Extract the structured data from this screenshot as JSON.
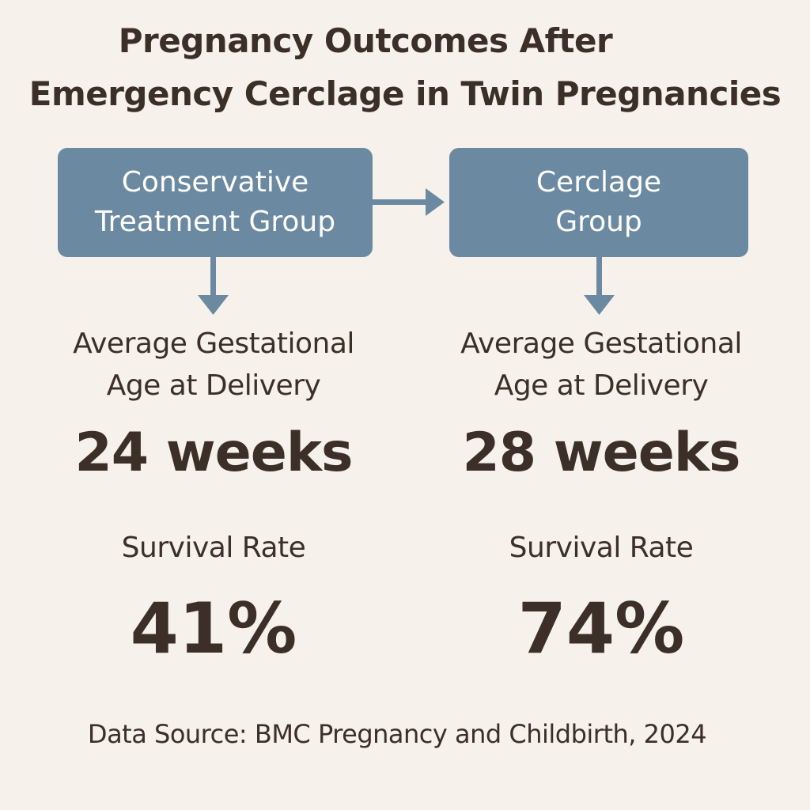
{
  "title": {
    "line1": "Pregnancy Outcomes After",
    "line2": "Emergency Cerclage in Twin Pregnancies"
  },
  "groups": [
    {
      "label_line1": "Conservative",
      "label_line2": "Treatment Group",
      "age_label_line1": "Average Gestational",
      "age_label_line2": "Age at Delivery",
      "age_value": "24 weeks",
      "survival_label": "Survival Rate",
      "survival_value": "41%"
    },
    {
      "label_line1": "Cerclage",
      "label_line2": "Group",
      "age_label_line1": "Average Gestational",
      "age_label_line2": "Age at Delivery",
      "age_value": "28 weeks",
      "survival_label": "Survival Rate",
      "survival_value": "74%"
    }
  ],
  "source": "Data Source: BMC Pregnancy and Childbirth, 2024",
  "colors": {
    "background": "#f6f1eb",
    "box": "#6b8aa2",
    "text": "#3b2f28"
  }
}
